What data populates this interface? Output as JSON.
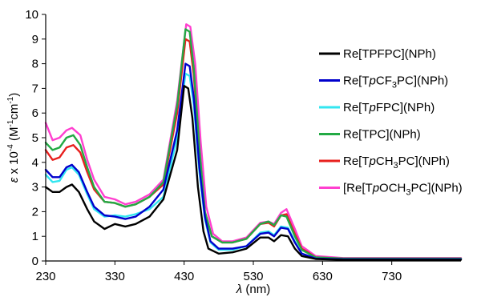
{
  "chart_data": {
    "type": "line",
    "xlabel": {
      "symbol": "λ",
      "unit": " (nm)"
    },
    "ylabel": {
      "symbol": "ε",
      "pre": " x 10",
      "exp": "-4",
      "unit_pre": " (M",
      "unit_exp1": "-1",
      "unit_mid": "cm",
      "unit_exp2": "-1",
      "unit_post": ")"
    },
    "xlim": [
      230,
      830
    ],
    "ylim": [
      0,
      10
    ],
    "xticks": [
      "230",
      "330",
      "430",
      "530",
      "630",
      "730"
    ],
    "yticks": [
      "0",
      "1",
      "2",
      "3",
      "4",
      "5",
      "6",
      "7",
      "8",
      "9",
      "10"
    ],
    "grid": false,
    "legend_position": "right",
    "series": [
      {
        "name": "Re[TPFPC](NPh)",
        "legend_parts": [
          {
            "t": "Re[TPFPC](NPh)"
          }
        ],
        "color": "#000000",
        "points": [
          [
            230,
            3.0
          ],
          [
            240,
            2.8
          ],
          [
            250,
            2.8
          ],
          [
            260,
            3.0
          ],
          [
            268,
            3.1
          ],
          [
            278,
            2.8
          ],
          [
            290,
            2.1
          ],
          [
            300,
            1.6
          ],
          [
            315,
            1.3
          ],
          [
            330,
            1.5
          ],
          [
            345,
            1.4
          ],
          [
            360,
            1.5
          ],
          [
            380,
            1.8
          ],
          [
            400,
            2.5
          ],
          [
            420,
            4.5
          ],
          [
            430,
            7.1
          ],
          [
            436,
            7.0
          ],
          [
            442,
            5.8
          ],
          [
            450,
            3.0
          ],
          [
            458,
            1.2
          ],
          [
            465,
            0.5
          ],
          [
            480,
            0.3
          ],
          [
            500,
            0.35
          ],
          [
            520,
            0.5
          ],
          [
            540,
            0.95
          ],
          [
            552,
            0.95
          ],
          [
            560,
            0.8
          ],
          [
            570,
            1.05
          ],
          [
            580,
            1.0
          ],
          [
            590,
            0.5
          ],
          [
            600,
            0.2
          ],
          [
            620,
            0.08
          ],
          [
            660,
            0.05
          ],
          [
            830,
            0.05
          ]
        ]
      },
      {
        "name": "Re[TpCF3PC](NPh)",
        "legend_parts": [
          {
            "t": "Re[T"
          },
          {
            "t": "p",
            "i": true
          },
          {
            "t": "CF"
          },
          {
            "t": "3",
            "sub": true
          },
          {
            "t": "PC](NPh)"
          }
        ],
        "color": "#0000cc",
        "points": [
          [
            230,
            3.7
          ],
          [
            240,
            3.4
          ],
          [
            250,
            3.4
          ],
          [
            260,
            3.8
          ],
          [
            268,
            3.9
          ],
          [
            278,
            3.6
          ],
          [
            290,
            2.8
          ],
          [
            300,
            2.2
          ],
          [
            315,
            1.85
          ],
          [
            330,
            1.8
          ],
          [
            345,
            1.7
          ],
          [
            360,
            1.8
          ],
          [
            380,
            2.2
          ],
          [
            400,
            2.9
          ],
          [
            420,
            5.3
          ],
          [
            432,
            8.0
          ],
          [
            438,
            7.9
          ],
          [
            444,
            6.6
          ],
          [
            452,
            3.8
          ],
          [
            460,
            1.8
          ],
          [
            468,
            0.8
          ],
          [
            480,
            0.5
          ],
          [
            500,
            0.5
          ],
          [
            520,
            0.6
          ],
          [
            540,
            1.1
          ],
          [
            552,
            1.15
          ],
          [
            560,
            1.0
          ],
          [
            570,
            1.35
          ],
          [
            580,
            1.3
          ],
          [
            590,
            0.75
          ],
          [
            600,
            0.3
          ],
          [
            620,
            0.1
          ],
          [
            660,
            0.07
          ],
          [
            830,
            0.07
          ]
        ]
      },
      {
        "name": "Re[TpFPC](NPh)",
        "legend_parts": [
          {
            "t": "Re[T"
          },
          {
            "t": "p",
            "i": true
          },
          {
            "t": "FPC](NPh)"
          }
        ],
        "color": "#33e6f0",
        "points": [
          [
            230,
            3.5
          ],
          [
            240,
            3.2
          ],
          [
            250,
            3.25
          ],
          [
            260,
            3.7
          ],
          [
            268,
            3.8
          ],
          [
            278,
            3.5
          ],
          [
            290,
            2.7
          ],
          [
            300,
            2.1
          ],
          [
            315,
            1.8
          ],
          [
            330,
            1.85
          ],
          [
            345,
            1.8
          ],
          [
            360,
            1.9
          ],
          [
            380,
            2.1
          ],
          [
            400,
            2.6
          ],
          [
            420,
            5.0
          ],
          [
            432,
            7.6
          ],
          [
            438,
            7.5
          ],
          [
            444,
            6.3
          ],
          [
            452,
            3.6
          ],
          [
            460,
            1.7
          ],
          [
            468,
            0.75
          ],
          [
            480,
            0.45
          ],
          [
            500,
            0.45
          ],
          [
            520,
            0.6
          ],
          [
            540,
            1.15
          ],
          [
            552,
            1.2
          ],
          [
            560,
            1.05
          ],
          [
            570,
            1.4
          ],
          [
            580,
            1.35
          ],
          [
            590,
            0.8
          ],
          [
            600,
            0.3
          ],
          [
            620,
            0.1
          ],
          [
            660,
            0.07
          ],
          [
            830,
            0.07
          ]
        ]
      },
      {
        "name": "Re[TPC](NPh)",
        "legend_parts": [
          {
            "t": "Re[TPC](NPh)"
          }
        ],
        "color": "#22aa44",
        "points": [
          [
            230,
            4.8
          ],
          [
            240,
            4.5
          ],
          [
            250,
            4.6
          ],
          [
            260,
            5.0
          ],
          [
            270,
            5.1
          ],
          [
            280,
            4.7
          ],
          [
            290,
            3.8
          ],
          [
            300,
            3.0
          ],
          [
            315,
            2.4
          ],
          [
            330,
            2.35
          ],
          [
            345,
            2.2
          ],
          [
            360,
            2.3
          ],
          [
            380,
            2.6
          ],
          [
            400,
            3.2
          ],
          [
            420,
            6.3
          ],
          [
            432,
            9.4
          ],
          [
            438,
            9.3
          ],
          [
            444,
            7.8
          ],
          [
            452,
            4.6
          ],
          [
            460,
            2.0
          ],
          [
            470,
            1.0
          ],
          [
            485,
            0.75
          ],
          [
            500,
            0.75
          ],
          [
            520,
            0.9
          ],
          [
            540,
            1.5
          ],
          [
            552,
            1.6
          ],
          [
            560,
            1.45
          ],
          [
            570,
            1.85
          ],
          [
            578,
            1.8
          ],
          [
            590,
            1.0
          ],
          [
            600,
            0.45
          ],
          [
            620,
            0.15
          ],
          [
            660,
            0.1
          ],
          [
            830,
            0.1
          ]
        ]
      },
      {
        "name": "Re[TpCH3PC](NPh)",
        "legend_parts": [
          {
            "t": "Re[T"
          },
          {
            "t": "p",
            "i": true
          },
          {
            "t": "CH"
          },
          {
            "t": "3",
            "sub": true
          },
          {
            "t": "PC](NPh)"
          }
        ],
        "color": "#e8201e",
        "points": [
          [
            230,
            4.5
          ],
          [
            240,
            4.1
          ],
          [
            250,
            4.2
          ],
          [
            260,
            4.6
          ],
          [
            270,
            4.7
          ],
          [
            280,
            4.4
          ],
          [
            290,
            3.6
          ],
          [
            300,
            2.9
          ],
          [
            315,
            2.4
          ],
          [
            330,
            2.35
          ],
          [
            345,
            2.2
          ],
          [
            360,
            2.3
          ],
          [
            380,
            2.6
          ],
          [
            400,
            3.1
          ],
          [
            420,
            6.0
          ],
          [
            432,
            9.0
          ],
          [
            438,
            8.9
          ],
          [
            444,
            7.5
          ],
          [
            452,
            4.4
          ],
          [
            460,
            2.0
          ],
          [
            470,
            1.0
          ],
          [
            485,
            0.75
          ],
          [
            500,
            0.75
          ],
          [
            520,
            0.9
          ],
          [
            540,
            1.5
          ],
          [
            552,
            1.55
          ],
          [
            560,
            1.4
          ],
          [
            570,
            1.85
          ],
          [
            578,
            1.9
          ],
          [
            590,
            1.1
          ],
          [
            600,
            0.5
          ],
          [
            620,
            0.15
          ],
          [
            660,
            0.1
          ],
          [
            830,
            0.1
          ]
        ]
      },
      {
        "name": "[Re[TpOCH3PC](NPh)",
        "legend_parts": [
          {
            "t": "[Re[T"
          },
          {
            "t": "p",
            "i": true
          },
          {
            "t": "OCH"
          },
          {
            "t": "3",
            "sub": true
          },
          {
            "t": "PC](NPh)"
          }
        ],
        "color": "#ff3fcf",
        "points": [
          [
            230,
            5.6
          ],
          [
            240,
            4.9
          ],
          [
            250,
            5.0
          ],
          [
            260,
            5.3
          ],
          [
            268,
            5.4
          ],
          [
            280,
            5.1
          ],
          [
            290,
            4.1
          ],
          [
            300,
            3.3
          ],
          [
            315,
            2.6
          ],
          [
            330,
            2.5
          ],
          [
            345,
            2.3
          ],
          [
            360,
            2.4
          ],
          [
            380,
            2.7
          ],
          [
            400,
            3.3
          ],
          [
            420,
            6.5
          ],
          [
            433,
            9.6
          ],
          [
            439,
            9.5
          ],
          [
            446,
            8.0
          ],
          [
            454,
            4.8
          ],
          [
            462,
            2.2
          ],
          [
            472,
            1.1
          ],
          [
            485,
            0.8
          ],
          [
            500,
            0.8
          ],
          [
            520,
            0.95
          ],
          [
            540,
            1.55
          ],
          [
            552,
            1.6
          ],
          [
            560,
            1.5
          ],
          [
            570,
            1.95
          ],
          [
            578,
            2.1
          ],
          [
            590,
            1.3
          ],
          [
            600,
            0.6
          ],
          [
            620,
            0.2
          ],
          [
            660,
            0.12
          ],
          [
            830,
            0.12
          ]
        ]
      }
    ]
  }
}
